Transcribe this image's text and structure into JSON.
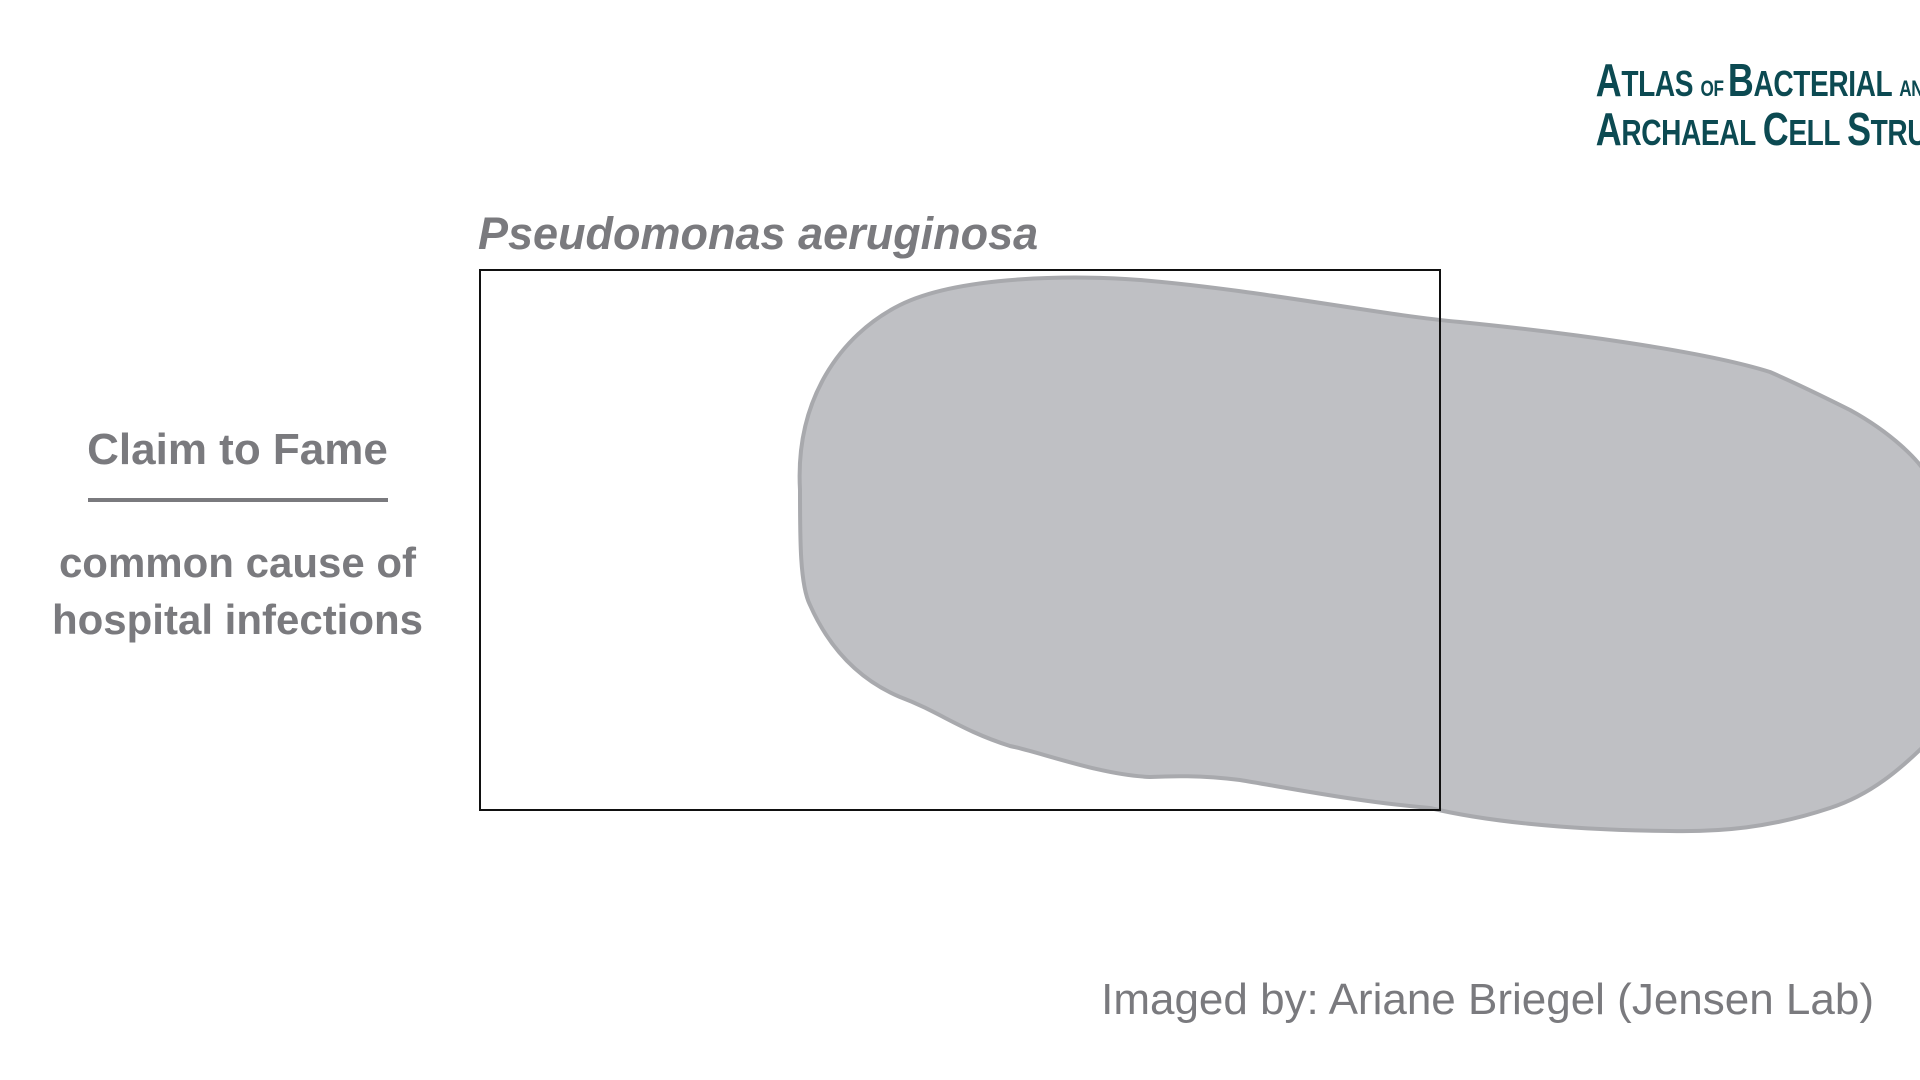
{
  "logo": {
    "line1": [
      "A",
      "tlas ",
      "of ",
      "B",
      "acterial ",
      "and"
    ],
    "line2": [
      "A",
      "rchaeal ",
      "C",
      "ell ",
      "S",
      "tructure"
    ],
    "color": "#0c4a52"
  },
  "species_title": "Pseudomonas aeruginosa",
  "claim": {
    "heading": "Claim to Fame",
    "text": "common cause of\nhospital infections"
  },
  "credit": "Imaged by: Ariane Briegel (Jensen Lab)",
  "colors": {
    "text_gray": "#7a7a7e",
    "cell_fill": "#bfc0c4",
    "cell_stroke": "#a8a9ad",
    "frame_stroke": "#111111"
  }
}
